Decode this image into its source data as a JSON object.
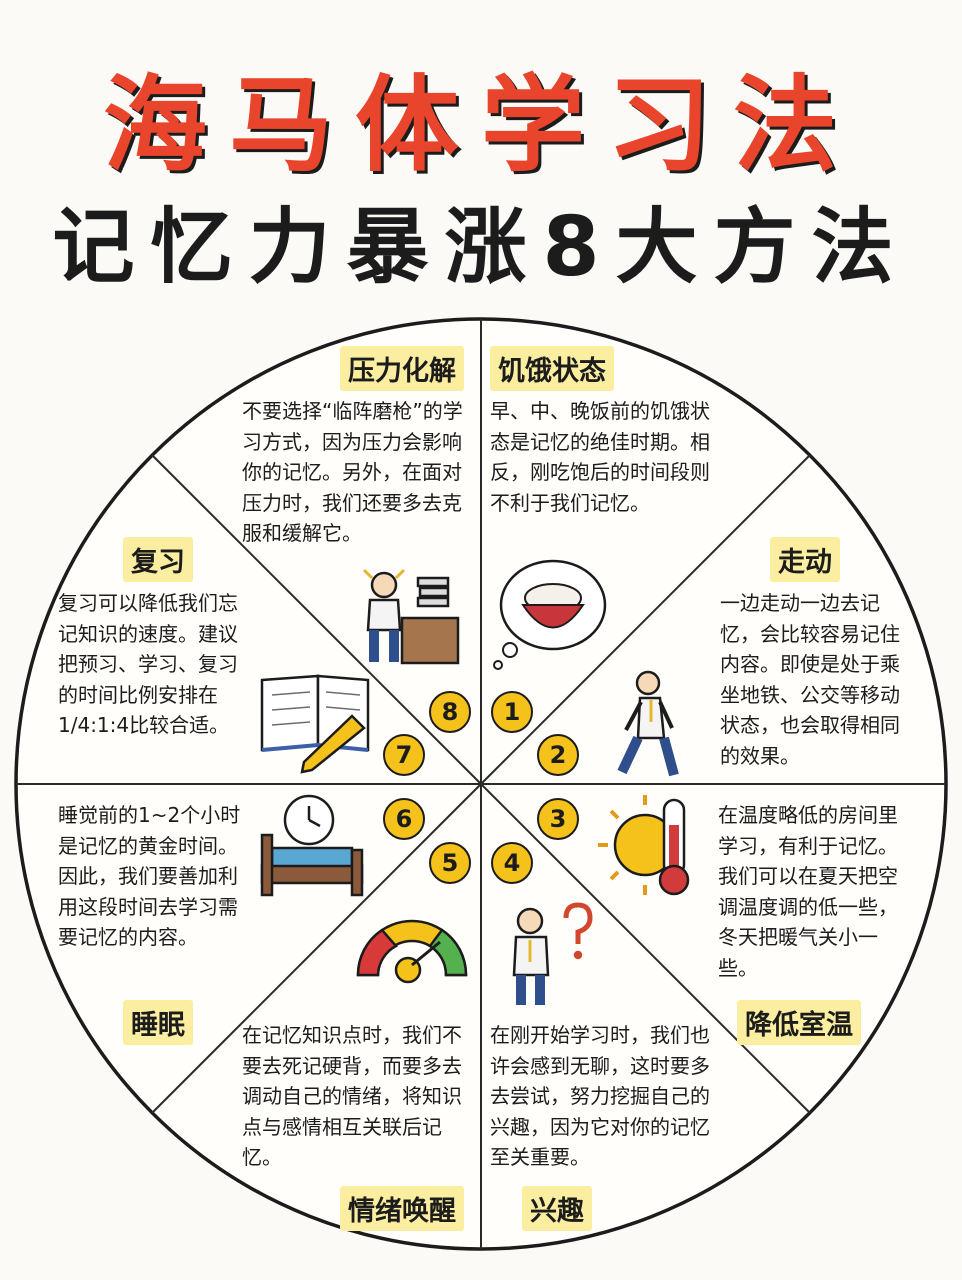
{
  "title": "海马体学习法",
  "subtitle": "记忆力暴涨8大方法",
  "colors": {
    "title_red": "#e8452c",
    "highlight": "#fbeea0",
    "number_badge": "#f5c21b"
  },
  "methods": [
    {
      "number": "1",
      "title": "饥饿状态",
      "desc": "早、中、晚饭前的饥饿状态是记忆的绝佳时期。相反，刚吃饱后的时间段则不利于我们记忆。",
      "icon": "rice-bowl-icon"
    },
    {
      "number": "2",
      "title": "走动",
      "desc": "一边走动一边去记忆，会比较容易记住内容。即使是处于乘坐地铁、公交等移动状态，也会取得相同的效果。",
      "icon": "walking-person-icon"
    },
    {
      "number": "3",
      "title": "降低室温",
      "desc": "在温度略低的房间里学习，有利于记忆。我们可以在夏天把空调温度调的低一些，冬天把暖气关小一些。",
      "icon": "sun-thermometer-icon"
    },
    {
      "number": "4",
      "title": "兴趣",
      "desc": "在刚开始学习时，我们也许会感到无聊，这时要多去尝试，努力挖掘自己的兴趣，因为它对你的记忆至关重要。",
      "icon": "thinking-person-icon"
    },
    {
      "number": "5",
      "title": "情绪唤醒",
      "desc": "在记忆知识点时，我们不要去死记硬背，而要多去调动自己的情绪，将知识点与感情相互关联后记忆。",
      "icon": "mood-gauge-icon"
    },
    {
      "number": "6",
      "title": "睡眠",
      "desc": "睡觉前的1~2个小时是记忆的黄金时间。因此，我们要善加利用这段时间去学习需要记忆的内容。",
      "icon": "clock-bed-icon"
    },
    {
      "number": "7",
      "title": "复习",
      "desc": "复习可以降低我们忘记知识的速度。建议把预习、学习、复习的时间比例安排在1/4:1:4比较合适。",
      "icon": "book-pencil-icon"
    },
    {
      "number": "8",
      "title": "压力化解",
      "desc": "不要选择“临阵磨枪”的学习方式，因为压力会影响你的记忆。另外，在面对压力时，我们还要多去克服和缓解它。",
      "icon": "stressed-person-icon"
    }
  ]
}
